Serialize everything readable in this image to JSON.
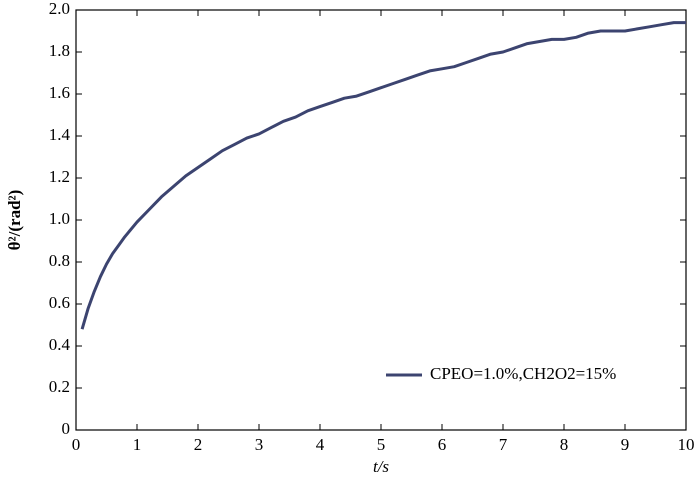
{
  "chart_data": {
    "type": "line",
    "xlabel": "t/s",
    "ylabel": "θ²/(rad²)",
    "x": [
      0.1,
      0.2,
      0.3,
      0.4,
      0.5,
      0.6,
      0.7,
      0.8,
      1.0,
      1.2,
      1.4,
      1.6,
      1.8,
      2.0,
      2.2,
      2.4,
      2.6,
      2.8,
      3.0,
      3.2,
      3.4,
      3.6,
      3.8,
      4.0,
      4.2,
      4.4,
      4.6,
      4.8,
      5.0,
      5.2,
      5.4,
      5.6,
      5.8,
      6.0,
      6.2,
      6.4,
      6.6,
      6.8,
      7.0,
      7.2,
      7.4,
      7.6,
      7.8,
      8.0,
      8.2,
      8.4,
      8.6,
      8.8,
      9.0,
      9.2,
      9.4,
      9.6,
      9.8,
      10.0
    ],
    "series": [
      {
        "name": "CPEO=1.0%,CH2O2=15%",
        "color": "#3c4470",
        "values": [
          0.48,
          0.58,
          0.66,
          0.73,
          0.79,
          0.84,
          0.88,
          0.92,
          0.99,
          1.05,
          1.11,
          1.16,
          1.21,
          1.25,
          1.29,
          1.33,
          1.36,
          1.39,
          1.41,
          1.44,
          1.47,
          1.49,
          1.52,
          1.54,
          1.56,
          1.58,
          1.59,
          1.61,
          1.63,
          1.65,
          1.67,
          1.69,
          1.71,
          1.72,
          1.73,
          1.75,
          1.77,
          1.79,
          1.8,
          1.82,
          1.84,
          1.85,
          1.86,
          1.86,
          1.87,
          1.89,
          1.9,
          1.9,
          1.9,
          1.91,
          1.92,
          1.93,
          1.94,
          1.94
        ]
      }
    ],
    "xlim": [
      0,
      10
    ],
    "xticks": [
      0,
      1,
      2,
      3,
      4,
      5,
      6,
      7,
      8,
      9,
      10
    ],
    "ylim": [
      0,
      2.0
    ],
    "yticks": [
      0,
      0.2,
      0.4,
      0.6,
      0.8,
      {
        "value": 1.0,
        "label": "1.0"
      },
      1.2,
      1.4,
      1.6,
      1.8,
      {
        "value": 2.0,
        "label": "2.0"
      }
    ],
    "legend": "lower right",
    "grid": false
  }
}
